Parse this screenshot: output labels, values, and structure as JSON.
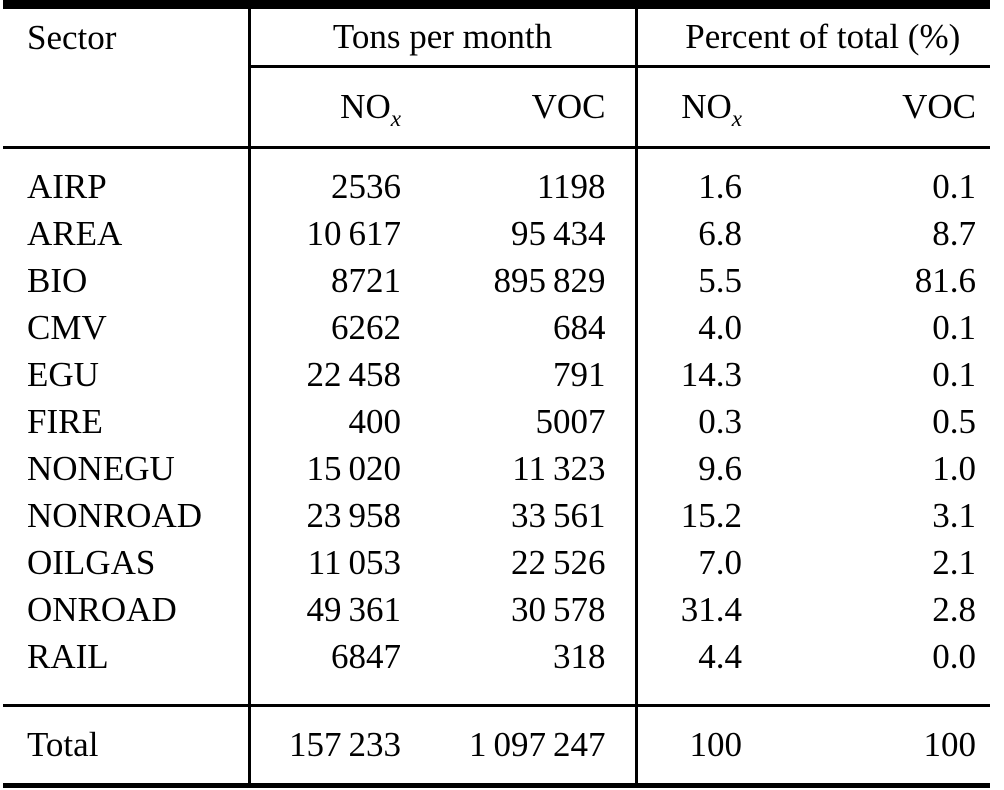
{
  "table": {
    "col_group_headers": {
      "sector": "Sector",
      "tons": "Tons per month",
      "percent": "Percent of total (%)"
    },
    "sub_headers": {
      "nox_main": "NO",
      "nox_sub": "x",
      "voc": "VOC"
    },
    "rows": [
      {
        "sector": "AIRP",
        "tons_nox": "2536",
        "tons_voc": "1198",
        "pct_nox": "1.6",
        "pct_voc": "0.1"
      },
      {
        "sector": "AREA",
        "tons_nox": "10 617",
        "tons_voc": "95 434",
        "pct_nox": "6.8",
        "pct_voc": "8.7"
      },
      {
        "sector": "BIO",
        "tons_nox": "8721",
        "tons_voc": "895 829",
        "pct_nox": "5.5",
        "pct_voc": "81.6"
      },
      {
        "sector": "CMV",
        "tons_nox": "6262",
        "tons_voc": "684",
        "pct_nox": "4.0",
        "pct_voc": "0.1"
      },
      {
        "sector": "EGU",
        "tons_nox": "22 458",
        "tons_voc": "791",
        "pct_nox": "14.3",
        "pct_voc": "0.1"
      },
      {
        "sector": "FIRE",
        "tons_nox": "400",
        "tons_voc": "5007",
        "pct_nox": "0.3",
        "pct_voc": "0.5"
      },
      {
        "sector": "NONEGU",
        "tons_nox": "15 020",
        "tons_voc": "11 323",
        "pct_nox": "9.6",
        "pct_voc": "1.0"
      },
      {
        "sector": "NONROAD",
        "tons_nox": "23 958",
        "tons_voc": "33 561",
        "pct_nox": "15.2",
        "pct_voc": "3.1"
      },
      {
        "sector": "OILGAS",
        "tons_nox": "11 053",
        "tons_voc": "22 526",
        "pct_nox": "7.0",
        "pct_voc": "2.1"
      },
      {
        "sector": "ONROAD",
        "tons_nox": "49 361",
        "tons_voc": "30 578",
        "pct_nox": "31.4",
        "pct_voc": "2.8"
      },
      {
        "sector": "RAIL",
        "tons_nox": "6847",
        "tons_voc": "318",
        "pct_nox": "4.4",
        "pct_voc": "0.0"
      }
    ],
    "total": {
      "label": "Total",
      "tons_nox": "157 233",
      "tons_voc": "1 097 247",
      "pct_nox": "100",
      "pct_voc": "100"
    }
  },
  "colors": {
    "text": "#000000",
    "background": "#ffffff",
    "rule": "#000000"
  }
}
